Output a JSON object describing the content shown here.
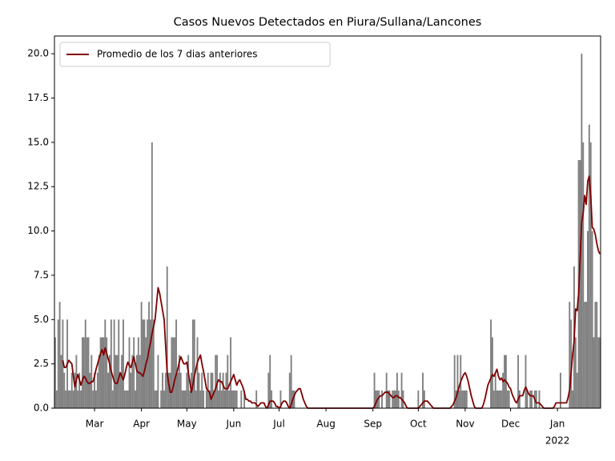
{
  "chart_data": {
    "type": "bar",
    "title": "Casos Nuevos Detectados en Piura/Sullana/Lancones",
    "categories": [
      null,
      null,
      null,
      null,
      null,
      null,
      null,
      null,
      null,
      null,
      null,
      null,
      null,
      null,
      null,
      null,
      null,
      null,
      null,
      null,
      null,
      null,
      null,
      null,
      null,
      null,
      "Mar",
      null,
      null,
      null,
      null,
      null,
      null,
      null,
      null,
      null,
      null,
      null,
      null,
      null,
      null,
      null,
      null,
      null,
      null,
      null,
      null,
      null,
      null,
      null,
      null,
      null,
      null,
      null,
      null,
      null,
      null,
      "Apr",
      null,
      null,
      null,
      null,
      null,
      null,
      null,
      null,
      null,
      null,
      null,
      null,
      null,
      null,
      null,
      null,
      null,
      null,
      null,
      null,
      null,
      null,
      null,
      null,
      null,
      null,
      null,
      null,
      null,
      "May",
      null,
      null,
      null,
      null,
      null,
      null,
      null,
      null,
      null,
      null,
      null,
      null,
      null,
      null,
      null,
      null,
      null,
      null,
      null,
      null,
      null,
      null,
      null,
      null,
      null,
      null,
      null,
      null,
      null,
      null,
      "Jun",
      null,
      null,
      null,
      null,
      null,
      null,
      null,
      null,
      null,
      null,
      null,
      null,
      null,
      null,
      null,
      null,
      null,
      null,
      null,
      null,
      null,
      null,
      null,
      null,
      null,
      null,
      null,
      null,
      null,
      "Jul",
      null,
      null,
      null,
      null,
      null,
      null,
      null,
      null,
      null,
      null,
      null,
      null,
      null,
      null,
      null,
      null,
      null,
      null,
      null,
      null,
      null,
      null,
      null,
      null,
      null,
      null,
      null,
      null,
      null,
      null,
      "Aug",
      null,
      null,
      null,
      null,
      null,
      null,
      null,
      null,
      null,
      null,
      null,
      null,
      null,
      null,
      null,
      null,
      null,
      null,
      null,
      null,
      null,
      null,
      null,
      null,
      null,
      null,
      null,
      null,
      null,
      null,
      "Sep",
      null,
      null,
      null,
      null,
      null,
      null,
      null,
      null,
      null,
      null,
      null,
      null,
      null,
      null,
      null,
      null,
      null,
      null,
      null,
      null,
      null,
      null,
      null,
      null,
      null,
      null,
      null,
      null,
      null,
      "Oct",
      null,
      null,
      null,
      null,
      null,
      null,
      null,
      null,
      null,
      null,
      null,
      null,
      null,
      null,
      null,
      null,
      null,
      null,
      null,
      null,
      null,
      null,
      null,
      null,
      null,
      null,
      null,
      null,
      null,
      null,
      "Nov",
      null,
      null,
      null,
      null,
      null,
      null,
      null,
      null,
      null,
      null,
      null,
      null,
      null,
      null,
      null,
      null,
      null,
      null,
      null,
      null,
      null,
      null,
      null,
      null,
      null,
      null,
      null,
      null,
      null,
      "Dec",
      null,
      null,
      null,
      null,
      null,
      null,
      null,
      null,
      null,
      null,
      null,
      null,
      null,
      null,
      null,
      null,
      null,
      null,
      null,
      null,
      null,
      null,
      null,
      null,
      null,
      null,
      null,
      null,
      null,
      null,
      "Jan",
      null,
      null,
      null,
      null,
      null,
      null,
      null,
      null,
      null,
      null,
      null,
      null,
      null,
      null,
      null,
      null,
      null,
      null,
      null,
      null,
      null,
      null,
      null,
      null,
      null,
      null,
      null,
      null
    ],
    "year_label": "2022",
    "bar_color": "#808080",
    "values": [
      4,
      1,
      5,
      6,
      3,
      5,
      2,
      1,
      5,
      1,
      1,
      2,
      1,
      2,
      3,
      1,
      2,
      1,
      4,
      4,
      5,
      4,
      4,
      2,
      3,
      1,
      2,
      1,
      2,
      3,
      4,
      4,
      4,
      5,
      4,
      2,
      3,
      5,
      1,
      5,
      3,
      3,
      5,
      2,
      3,
      5,
      1,
      1,
      1,
      4,
      2,
      3,
      4,
      1,
      3,
      4,
      3,
      6,
      5,
      5,
      4,
      5,
      6,
      5,
      15,
      5,
      1,
      1,
      3,
      0,
      1,
      2,
      1,
      2,
      8,
      2,
      2,
      4,
      4,
      4,
      5,
      2,
      3,
      2,
      1,
      1,
      1,
      2,
      3,
      1,
      2,
      5,
      5,
      1,
      4,
      2,
      1,
      2,
      1,
      0,
      1,
      2,
      1,
      2,
      2,
      1,
      3,
      3,
      1,
      2,
      1,
      2,
      1,
      2,
      3,
      1,
      4,
      1,
      1,
      1,
      1,
      0,
      0,
      1,
      0,
      1,
      0,
      0,
      0,
      0,
      0,
      0,
      0,
      1,
      0,
      0,
      0,
      0,
      0,
      0,
      0,
      2,
      3,
      1,
      0,
      0,
      0,
      0,
      0,
      1,
      0,
      0,
      0,
      0,
      0,
      2,
      3,
      1,
      1,
      0,
      0,
      0,
      0,
      0,
      0,
      0,
      0,
      0,
      0,
      0,
      0,
      0,
      0,
      0,
      0,
      0,
      0,
      0,
      0,
      0,
      0,
      0,
      0,
      0,
      0,
      0,
      0,
      0,
      0,
      0,
      0,
      0,
      0,
      0,
      0,
      0,
      0,
      0,
      0,
      0,
      0,
      0,
      0,
      0,
      0,
      0,
      0,
      0,
      0,
      0,
      0,
      2,
      1,
      1,
      1,
      0,
      1,
      0,
      0,
      2,
      1,
      1,
      0,
      1,
      1,
      1,
      2,
      1,
      0,
      2,
      1,
      0,
      0,
      0,
      0,
      0,
      0,
      0,
      0,
      0,
      1,
      0,
      0,
      2,
      1,
      0,
      0,
      0,
      0,
      0,
      0,
      0,
      0,
      0,
      0,
      0,
      0,
      0,
      0,
      0,
      0,
      0,
      0,
      0,
      3,
      1,
      3,
      1,
      3,
      1,
      1,
      1,
      1,
      0,
      0,
      0,
      0,
      0,
      0,
      0,
      0,
      0,
      0,
      0,
      0,
      0,
      0,
      0,
      5,
      4,
      1,
      2,
      1,
      1,
      1,
      1,
      2,
      3,
      3,
      1,
      1,
      0,
      0,
      0,
      0,
      0,
      3,
      1,
      0,
      0,
      0,
      3,
      1,
      0,
      1,
      1,
      0,
      1,
      1,
      0,
      1,
      0,
      0,
      0,
      0,
      0,
      0,
      0,
      0,
      0,
      0,
      0,
      0,
      0,
      2,
      0,
      0,
      0,
      0,
      0,
      6,
      5,
      1,
      8,
      4,
      2,
      14,
      14,
      20,
      15,
      6,
      6,
      10,
      16,
      15,
      10,
      4,
      6,
      6,
      4,
      4
    ],
    "series": [
      {
        "name": "Promedio de los 7 dias anteriores",
        "color": "#800000",
        "type": "line",
        "values": [
          null,
          null,
          null,
          null,
          null,
          2.7,
          2.3,
          2.3,
          2.5,
          2.7,
          2.6,
          2.5,
          1.8,
          1.2,
          1.6,
          1.9,
          1.6,
          1.3,
          1.6,
          1.8,
          1.7,
          1.5,
          1.4,
          1.4,
          1.5,
          1.5,
          1.8,
          2.2,
          2.5,
          2.8,
          3.1,
          3.3,
          3.0,
          3.4,
          3.1,
          2.8,
          2.5,
          2.1,
          1.8,
          1.5,
          1.4,
          1.4,
          1.7,
          2.0,
          1.8,
          1.6,
          1.9,
          2.3,
          2.6,
          2.4,
          2.3,
          2.6,
          2.9,
          2.5,
          2.1,
          2.0,
          2.0,
          1.9,
          1.8,
          2.1,
          2.5,
          2.8,
          3.3,
          3.7,
          4.2,
          4.6,
          5.0,
          5.9,
          6.8,
          6.5,
          6.0,
          5.5,
          5.0,
          3.5,
          2.0,
          1.4,
          0.9,
          0.9,
          1.2,
          1.6,
          1.9,
          2.2,
          2.6,
          2.9,
          2.7,
          2.5,
          2.5,
          2.6,
          2.0,
          1.5,
          0.9,
          1.3,
          1.8,
          2.2,
          2.6,
          2.8,
          3.0,
          2.5,
          2.1,
          1.6,
          1.1,
          1.0,
          0.9,
          0.5,
          0.7,
          0.9,
          1.1,
          1.4,
          1.6,
          1.5,
          1.5,
          1.3,
          1.1,
          1.1,
          1.1,
          1.3,
          1.5,
          1.7,
          1.9,
          1.6,
          1.3,
          1.5,
          1.6,
          1.4,
          1.2,
          0.9,
          0.5,
          0.5,
          0.4,
          0.4,
          0.3,
          0.3,
          0.3,
          0.2,
          0.1,
          0.2,
          0.3,
          0.3,
          0.3,
          0.1,
          0.0,
          0.2,
          0.4,
          0.4,
          0.4,
          0.3,
          0.1,
          0.1,
          0.0,
          0.1,
          0.3,
          0.4,
          0.4,
          0.3,
          0.1,
          0.0,
          0.2,
          0.5,
          0.7,
          0.9,
          1.0,
          1.1,
          1.1,
          0.8,
          0.5,
          0.3,
          0.1,
          0.0,
          0,
          0,
          0,
          0,
          0,
          0,
          0,
          0,
          0,
          0,
          0,
          0,
          0,
          0,
          0,
          0,
          0,
          0,
          0,
          0,
          0,
          0,
          0,
          0,
          0,
          0,
          0,
          0,
          0,
          0,
          0,
          0,
          0,
          0,
          0,
          0,
          0,
          0,
          0,
          0,
          0,
          0,
          0.0,
          0.1,
          0.3,
          0.5,
          0.6,
          0.7,
          0.7,
          0.8,
          0.9,
          0.9,
          0.9,
          0.8,
          0.7,
          0.6,
          0.6,
          0.7,
          0.7,
          0.6,
          0.6,
          0.5,
          0.4,
          0.3,
          0.1,
          0.0,
          0.0,
          0.0,
          0.0,
          0.0,
          0.0,
          0.0,
          0.0,
          0.1,
          0.2,
          0.3,
          0.4,
          0.4,
          0.4,
          0.3,
          0.2,
          0.1,
          0.0,
          0,
          0,
          0,
          0,
          0,
          0,
          0,
          0,
          0,
          0,
          0,
          0.1,
          0.2,
          0.4,
          0.6,
          0.9,
          1.2,
          1.5,
          1.7,
          1.9,
          2.0,
          1.8,
          1.5,
          1.1,
          0.7,
          0.4,
          0.1,
          0.0,
          0,
          0,
          0,
          0,
          0.2,
          0.5,
          0.9,
          1.3,
          1.5,
          1.7,
          1.9,
          1.8,
          2.0,
          2.2,
          1.8,
          1.6,
          1.7,
          1.5,
          1.6,
          1.5,
          1.4,
          1.2,
          1.1,
          0.8,
          0.6,
          0.4,
          0.3,
          0.5,
          0.7,
          0.7,
          0.7,
          1.0,
          1.2,
          1.0,
          0.8,
          0.7,
          0.7,
          0.7,
          0.5,
          0.3,
          0.3,
          0.3,
          0.2,
          0.1,
          0.0,
          0.0,
          0.0,
          0.0,
          0.0,
          0.0,
          0.0,
          0.1,
          0.3,
          0.3,
          0.3,
          0.3,
          0.3,
          0.3,
          0.3,
          0.3,
          0.6,
          1.0,
          2.0,
          3.0,
          3.8,
          5.6,
          5.5,
          6.5,
          8.5,
          10.5,
          11.0,
          12.0,
          11.5,
          12.8,
          13.1,
          12.0,
          10.2,
          10.1,
          9.8,
          9.3,
          8.9,
          8.7
        ]
      }
    ],
    "ylim": [
      0,
      21
    ],
    "yticks": [
      {
        "value": 0,
        "label": "0.0"
      },
      {
        "value": 2.5,
        "label": "2.5"
      },
      {
        "value": 5,
        "label": "5.0"
      },
      {
        "value": 7.5,
        "label": "7.5"
      },
      {
        "value": 10,
        "label": "10.0"
      },
      {
        "value": 12.5,
        "label": "12.5"
      },
      {
        "value": 15,
        "label": "15.0"
      },
      {
        "value": 17.5,
        "label": "17.5"
      },
      {
        "value": 20,
        "label": "20.0"
      }
    ],
    "legend": "upper left",
    "grid": false
  }
}
